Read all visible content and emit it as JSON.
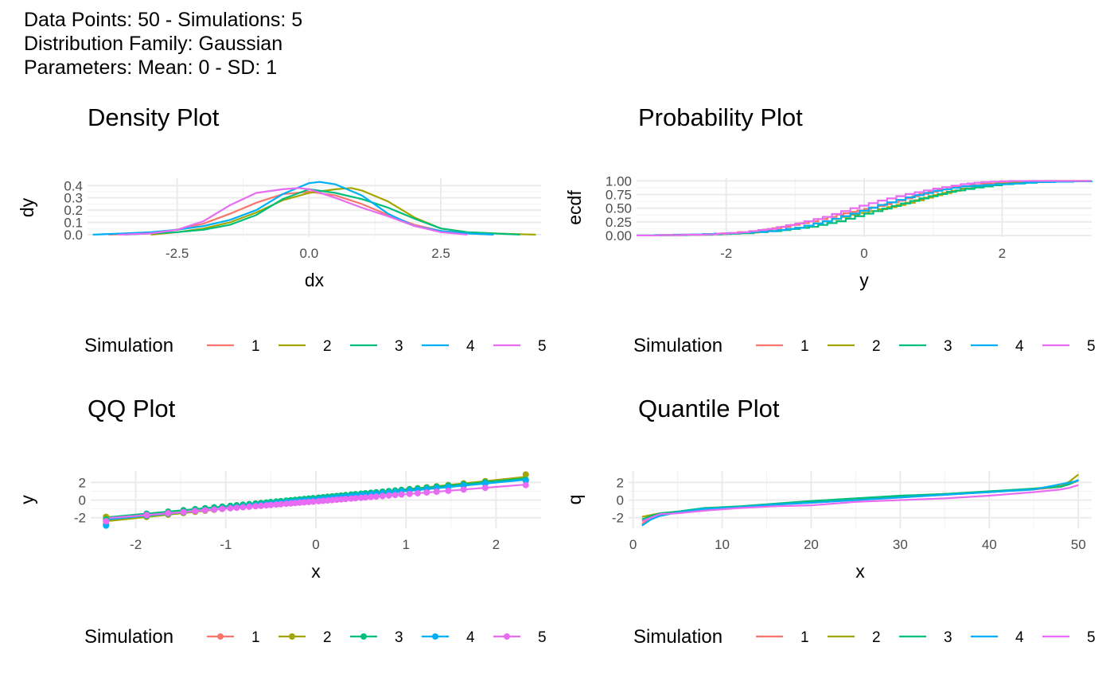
{
  "header": {
    "line1": "Data Points: 50 - Simulations: 5",
    "line2": "Distribution Family: Gaussian",
    "line3": "Parameters: Mean: 0 - SD: 1"
  },
  "legend": {
    "title": "Simulation",
    "labels": [
      "1",
      "2",
      "3",
      "4",
      "5"
    ]
  },
  "colors": [
    "#F8766D",
    "#A3A500",
    "#00BF7D",
    "#00B0F6",
    "#E76BF3"
  ],
  "chart_data": [
    {
      "id": "density",
      "type": "line",
      "title": "Density Plot",
      "xlabel": "dx",
      "ylabel": "dy",
      "xlim": [
        -4.2,
        4.4
      ],
      "ylim": [
        -0.02,
        0.46
      ],
      "xticks": [
        -2.5,
        0.0,
        2.5
      ],
      "xtick_labels": [
        "-2.5",
        "0.0",
        "2.5"
      ],
      "yticks": [
        0.0,
        0.1,
        0.2,
        0.3,
        0.4
      ],
      "ytick_labels": [
        "0.0",
        "0.1",
        "0.2",
        "0.3",
        "0.4"
      ],
      "grid": true,
      "legend_position": "bottom",
      "series": [
        {
          "name": "1",
          "x": [
            -3.8,
            -3,
            -2.5,
            -2,
            -1.5,
            -1,
            -0.5,
            0,
            0.5,
            1,
            1.5,
            2,
            2.5,
            3,
            3.5
          ],
          "y": [
            0.0,
            0.01,
            0.04,
            0.09,
            0.17,
            0.26,
            0.33,
            0.35,
            0.32,
            0.25,
            0.16,
            0.08,
            0.03,
            0.01,
            0.0
          ]
        },
        {
          "name": "2",
          "x": [
            -3,
            -2.5,
            -2,
            -1.5,
            -1,
            -0.5,
            0,
            0.5,
            0.8,
            1,
            1.5,
            2,
            2.5,
            3,
            3.5,
            4.3
          ],
          "y": [
            0.0,
            0.02,
            0.05,
            0.1,
            0.18,
            0.28,
            0.34,
            0.37,
            0.38,
            0.36,
            0.27,
            0.14,
            0.05,
            0.02,
            0.01,
            0.0
          ]
        },
        {
          "name": "3",
          "x": [
            -3.5,
            -2.5,
            -2,
            -1.5,
            -1,
            -0.5,
            0,
            0.5,
            1,
            1.5,
            2,
            2.5,
            3,
            3.5,
            4
          ],
          "y": [
            0.0,
            0.02,
            0.04,
            0.08,
            0.16,
            0.29,
            0.37,
            0.34,
            0.29,
            0.22,
            0.13,
            0.05,
            0.02,
            0.01,
            0.0
          ]
        },
        {
          "name": "4",
          "x": [
            -4.1,
            -3.5,
            -3,
            -2.5,
            -2,
            -1.5,
            -1,
            -0.5,
            0,
            0.2,
            0.5,
            1,
            1.5,
            2,
            2.5,
            3,
            3.5
          ],
          "y": [
            0.0,
            0.01,
            0.02,
            0.04,
            0.07,
            0.12,
            0.2,
            0.33,
            0.42,
            0.43,
            0.41,
            0.32,
            0.17,
            0.07,
            0.03,
            0.01,
            0.0
          ]
        },
        {
          "name": "5",
          "x": [
            -3.6,
            -3,
            -2.5,
            -2,
            -1.5,
            -1,
            -0.5,
            -0.2,
            0,
            0.5,
            1,
            1.5,
            2,
            2.5,
            3
          ],
          "y": [
            0.0,
            0.01,
            0.04,
            0.11,
            0.24,
            0.34,
            0.37,
            0.38,
            0.37,
            0.3,
            0.22,
            0.15,
            0.07,
            0.02,
            0.0
          ]
        }
      ]
    },
    {
      "id": "probability",
      "type": "line",
      "title": "Probability Plot",
      "xlabel": "y",
      "ylabel": "ecdf",
      "xlim": [
        -3.3,
        3.3
      ],
      "ylim": [
        -0.03,
        1.05
      ],
      "xticks": [
        -2,
        0,
        2
      ],
      "xtick_labels": [
        "-2",
        "0",
        "2"
      ],
      "yticks": [
        0.0,
        0.25,
        0.5,
        0.75,
        1.0
      ],
      "ytick_labels": [
        "0.00",
        "0.25",
        "0.50",
        "0.75",
        "1.00"
      ],
      "grid": true,
      "legend_position": "bottom",
      "series": [
        {
          "name": "1",
          "x": [
            -3.3,
            -2.3,
            -1.6,
            -1.2,
            -0.8,
            -0.4,
            -0.1,
            0.2,
            0.5,
            0.8,
            1.2,
            1.7,
            2.4,
            3.3
          ],
          "y": [
            0.0,
            0.02,
            0.08,
            0.16,
            0.26,
            0.38,
            0.46,
            0.54,
            0.64,
            0.76,
            0.88,
            0.95,
            1.0,
            1.0
          ]
        },
        {
          "name": "2",
          "x": [
            -3.3,
            -2.4,
            -1.8,
            -1.4,
            -1.0,
            -0.6,
            -0.2,
            0.2,
            0.6,
            1.0,
            1.4,
            1.9,
            2.6,
            3.3
          ],
          "y": [
            0.0,
            0.02,
            0.04,
            0.08,
            0.14,
            0.26,
            0.38,
            0.48,
            0.6,
            0.74,
            0.86,
            0.95,
            1.0,
            1.0
          ]
        },
        {
          "name": "3",
          "x": [
            -3.3,
            -2.2,
            -1.8,
            -1.2,
            -0.8,
            -0.4,
            0,
            0.4,
            0.8,
            1.2,
            1.6,
            2.0,
            2.5,
            3.3
          ],
          "y": [
            0.0,
            0.02,
            0.04,
            0.1,
            0.16,
            0.26,
            0.4,
            0.54,
            0.68,
            0.8,
            0.88,
            0.94,
            0.98,
            1.0
          ]
        },
        {
          "name": "4",
          "x": [
            -3.3,
            -2.5,
            -2.0,
            -1.4,
            -1.0,
            -0.6,
            -0.2,
            0.2,
            0.6,
            1.0,
            1.4,
            1.9,
            2.5,
            3.3
          ],
          "y": [
            0.0,
            0.02,
            0.04,
            0.08,
            0.14,
            0.26,
            0.4,
            0.56,
            0.7,
            0.82,
            0.9,
            0.94,
            0.98,
            1.0
          ]
        },
        {
          "name": "5",
          "x": [
            -3.3,
            -2.3,
            -1.8,
            -1.4,
            -1.0,
            -0.6,
            -0.2,
            0.2,
            0.6,
            1.0,
            1.4,
            1.7,
            2.1,
            3.3
          ],
          "y": [
            0.0,
            0.02,
            0.06,
            0.12,
            0.22,
            0.34,
            0.5,
            0.64,
            0.76,
            0.86,
            0.94,
            0.98,
            1.0,
            1.0
          ]
        }
      ]
    },
    {
      "id": "qq",
      "type": "scatter",
      "title": "QQ Plot",
      "xlabel": "x",
      "ylabel": "y",
      "xlim": [
        -2.5,
        2.5
      ],
      "ylim": [
        -3.2,
        3.3
      ],
      "xticks": [
        -2,
        -1,
        0,
        1,
        2
      ],
      "xtick_labels": [
        "-2",
        "-1",
        "0",
        "1",
        "2"
      ],
      "yticks": [
        -2,
        0,
        2
      ],
      "ytick_labels": [
        "-2",
        "0",
        "2"
      ],
      "grid": true,
      "legend_position": "bottom",
      "theoretical_x": [
        -2.33,
        -1.88,
        -1.64,
        -1.47,
        -1.34,
        -1.23,
        -1.13,
        -1.04,
        -0.95,
        -0.88,
        -0.81,
        -0.74,
        -0.67,
        -0.61,
        -0.55,
        -0.5,
        -0.44,
        -0.39,
        -0.33,
        -0.28,
        -0.23,
        -0.18,
        -0.13,
        -0.08,
        -0.03,
        0.03,
        0.08,
        0.13,
        0.18,
        0.23,
        0.28,
        0.33,
        0.39,
        0.44,
        0.5,
        0.55,
        0.61,
        0.67,
        0.74,
        0.81,
        0.88,
        0.95,
        1.04,
        1.13,
        1.23,
        1.34,
        1.47,
        1.64,
        1.88,
        2.33
      ],
      "series": [
        {
          "name": "1",
          "slope": 0.98,
          "intercept": 0.05,
          "y_min": -2.7,
          "y_max": 2.2
        },
        {
          "name": "2",
          "slope": 1.08,
          "intercept": 0.12,
          "y_min": -1.9,
          "y_max": 2.9
        },
        {
          "name": "3",
          "slope": 0.95,
          "intercept": 0.25,
          "y_min": -2.2,
          "y_max": 2.3
        },
        {
          "name": "4",
          "slope": 0.97,
          "intercept": 0.05,
          "y_min": -2.9,
          "y_max": 2.2
        },
        {
          "name": "5",
          "slope": 0.82,
          "intercept": -0.15,
          "y_min": -2.4,
          "y_max": 1.7
        }
      ]
    },
    {
      "id": "quantile",
      "type": "line",
      "title": "Quantile Plot",
      "xlabel": "x",
      "ylabel": "q",
      "xlim": [
        -0.5,
        51.5
      ],
      "ylim": [
        -3.2,
        3.3
      ],
      "xticks": [
        0,
        10,
        20,
        30,
        40,
        50
      ],
      "xtick_labels": [
        "0",
        "10",
        "20",
        "30",
        "40",
        "50"
      ],
      "yticks": [
        -2,
        0,
        2
      ],
      "ytick_labels": [
        "-2",
        "0",
        "2"
      ],
      "grid": true,
      "legend_position": "bottom",
      "series": [
        {
          "name": "1",
          "x": [
            1,
            2,
            3,
            5,
            8,
            12,
            16,
            20,
            25,
            30,
            35,
            40,
            45,
            48,
            49,
            50
          ],
          "y": [
            -2.7,
            -2.0,
            -1.6,
            -1.4,
            -1.0,
            -0.8,
            -0.5,
            -0.3,
            0.0,
            0.3,
            0.6,
            0.9,
            1.2,
            1.5,
            1.8,
            2.2
          ]
        },
        {
          "name": "2",
          "x": [
            1,
            2,
            3,
            5,
            8,
            12,
            16,
            20,
            25,
            30,
            35,
            40,
            45,
            48,
            49,
            50
          ],
          "y": [
            -1.9,
            -1.7,
            -1.5,
            -1.3,
            -1.0,
            -0.8,
            -0.5,
            -0.2,
            0.1,
            0.4,
            0.7,
            0.9,
            1.3,
            1.6,
            2.1,
            2.9
          ]
        },
        {
          "name": "3",
          "x": [
            1,
            2,
            3,
            5,
            8,
            12,
            16,
            20,
            25,
            30,
            35,
            40,
            45,
            48,
            49,
            50
          ],
          "y": [
            -2.2,
            -1.8,
            -1.5,
            -1.3,
            -0.9,
            -0.7,
            -0.4,
            -0.1,
            0.2,
            0.5,
            0.7,
            1.0,
            1.3,
            1.5,
            1.8,
            2.3
          ]
        },
        {
          "name": "4",
          "x": [
            1,
            2,
            3,
            5,
            8,
            12,
            16,
            20,
            25,
            30,
            35,
            40,
            45,
            47,
            49,
            50
          ],
          "y": [
            -2.9,
            -2.2,
            -1.8,
            -1.4,
            -1.0,
            -0.8,
            -0.5,
            -0.3,
            0.0,
            0.3,
            0.6,
            0.9,
            1.2,
            1.6,
            2.0,
            2.2
          ]
        },
        {
          "name": "5",
          "x": [
            1,
            2,
            3,
            5,
            8,
            12,
            16,
            20,
            25,
            30,
            35,
            40,
            45,
            48,
            49,
            50
          ],
          "y": [
            -2.4,
            -2.0,
            -1.6,
            -1.5,
            -1.2,
            -0.9,
            -0.7,
            -0.6,
            -0.2,
            0.0,
            0.2,
            0.5,
            0.9,
            1.2,
            1.4,
            1.7
          ]
        }
      ]
    }
  ]
}
